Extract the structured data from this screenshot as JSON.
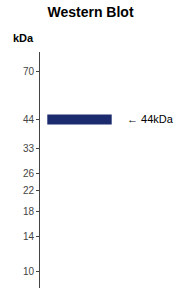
{
  "chart_data": {
    "type": "scatter",
    "title": "Western Blot",
    "y_label": "kDa",
    "categories": [
      null
    ],
    "values": [
      44
    ],
    "color": "#1c2a6e",
    "marker": "line",
    "log": "y",
    "ylim": [
      8.5,
      85
    ],
    "yticks": [
      10,
      14,
      18,
      22,
      26,
      33,
      44,
      70
    ],
    "grid": false,
    "tick_labels": "y",
    "annotations": [
      {
        "text": "← 44kDa",
        "y": 44
      }
    ]
  }
}
